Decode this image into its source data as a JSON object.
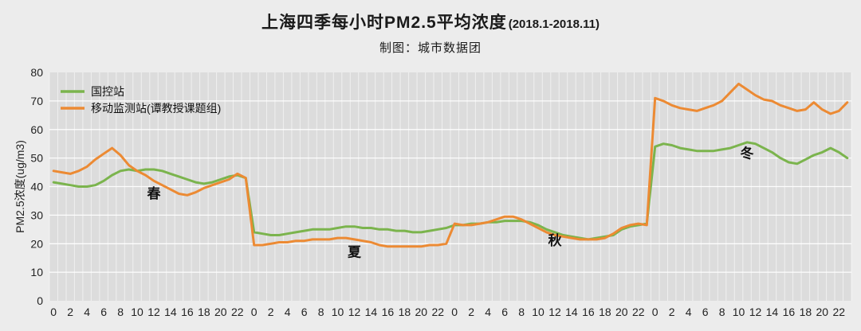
{
  "title": {
    "main": "上海四季每小时PM2.5平均浓度",
    "suffix": "(2018.1-2018.11)",
    "subtitle": "制图：城市数据团"
  },
  "chart_data": {
    "type": "line",
    "title": "上海四季每小时PM2.5平均浓度(2018.1-2018.11)",
    "subtitle": "制图：城市数据团",
    "ylabel": "PM2.5浓度(ug/m3)",
    "ylim": [
      0,
      80
    ],
    "yticks": [
      0,
      10,
      20,
      30,
      40,
      50,
      60,
      70,
      80
    ],
    "grid": true,
    "plot_bg": "#dcdcdc",
    "grid_color": "#ffffff",
    "legend_position": "top-left",
    "x_structure": {
      "seasons": 4,
      "season_names": [
        "春",
        "夏",
        "秋",
        "冬"
      ],
      "hours_per_season": 24,
      "tick_every_hours": 2,
      "tick_labels_per_season": [
        "0",
        "2",
        "4",
        "6",
        "8",
        "10",
        "12",
        "14",
        "16",
        "18",
        "20",
        "22"
      ]
    },
    "series": [
      {
        "name": "国控站",
        "color": "#7bb44d",
        "values": [
          41.5,
          41,
          40.5,
          40,
          40,
          40.5,
          42,
          44,
          45.5,
          46,
          45.5,
          46,
          46,
          45.5,
          44.5,
          43.5,
          42.5,
          41.5,
          41,
          41.5,
          42.5,
          43.5,
          44,
          43,
          24,
          23.5,
          23,
          23,
          23.5,
          24,
          24.5,
          25,
          25,
          25,
          25.5,
          26,
          26,
          25.5,
          25.5,
          25,
          25,
          24.5,
          24.5,
          24,
          24,
          24.5,
          25,
          25.5,
          26.5,
          26.5,
          27,
          27,
          27.5,
          27.5,
          28,
          28,
          28,
          27.5,
          26.5,
          25,
          24,
          23,
          22.5,
          22,
          21.5,
          22,
          22.5,
          23,
          25,
          26,
          26.5,
          27,
          54,
          55,
          54.5,
          53.5,
          53,
          52.5,
          52.5,
          52.5,
          53,
          53.5,
          54.5,
          55.5,
          55,
          53.5,
          52,
          50,
          48.5,
          48,
          49.5,
          51,
          52,
          53.5,
          52,
          50
        ]
      },
      {
        "name": "移动监测站(谭教授课题组)",
        "color": "#ec8a33",
        "values": [
          45.5,
          45,
          44.5,
          45.5,
          47,
          49.5,
          51.5,
          53.5,
          51,
          47.5,
          45.5,
          44,
          42,
          40.5,
          39,
          37.5,
          37,
          38,
          39.5,
          40.5,
          41.5,
          42.5,
          44.5,
          43,
          19.5,
          19.5,
          20,
          20.5,
          20.5,
          21,
          21,
          21.5,
          21.5,
          21.5,
          22,
          22,
          21.5,
          21,
          20.5,
          19.5,
          19,
          19,
          19,
          19,
          19,
          19.5,
          19.5,
          20,
          27,
          26.5,
          26.5,
          27,
          27.5,
          28.5,
          29.5,
          29.5,
          28.5,
          27,
          25.5,
          24,
          23,
          22.5,
          22,
          21.5,
          21.5,
          21.5,
          22,
          23.5,
          25.5,
          26.5,
          27,
          26.5,
          71,
          70,
          68.5,
          67.5,
          67,
          66.5,
          67.5,
          68.5,
          70,
          73,
          76,
          74,
          72,
          70.5,
          70,
          68.5,
          67.5,
          66.5,
          67,
          69.5,
          67,
          65.5,
          66.5,
          69.5
        ]
      }
    ],
    "annotations": [
      {
        "label": "春",
        "index": 12,
        "value": 36
      },
      {
        "label": "夏",
        "index": 36,
        "value": 15.5
      },
      {
        "label": "秋",
        "index": 60,
        "value": 19.5
      },
      {
        "label": "冬",
        "index": 83,
        "value": 50
      }
    ]
  }
}
